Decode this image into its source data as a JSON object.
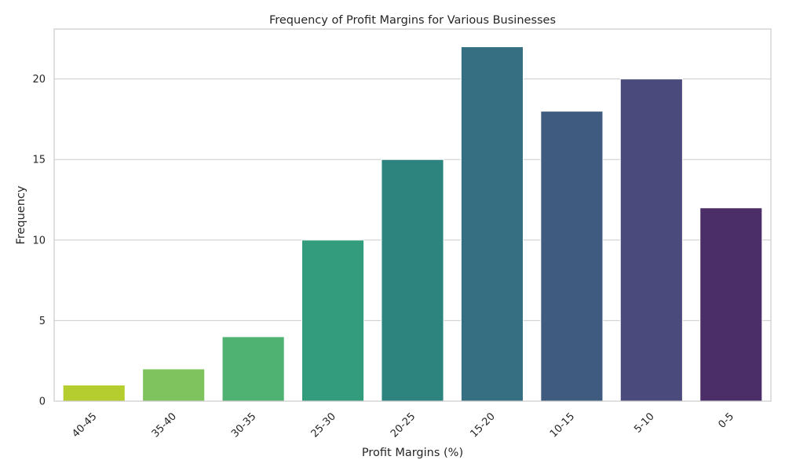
{
  "chart_data": {
    "type": "bar",
    "title": "Frequency of Profit Margins for Various Businesses",
    "xlabel": "Profit Margins (%)",
    "ylabel": "Frequency",
    "categories": [
      "40-45",
      "35-40",
      "30-35",
      "25-30",
      "20-25",
      "15-20",
      "10-15",
      "5-10",
      "0-5"
    ],
    "values": [
      1,
      2,
      4,
      10,
      15,
      22,
      18,
      20,
      12
    ],
    "colors": [
      "#b5cd2e",
      "#7fc35f",
      "#50b272",
      "#329c7d",
      "#2d847f",
      "#366f81",
      "#3f5c80",
      "#4b4a7d",
      "#4b2d68"
    ],
    "ylim": [
      0,
      23.1
    ],
    "yticks": [
      0,
      5,
      10,
      15,
      20
    ],
    "grid": true,
    "grid_axis": "y",
    "legend": "none"
  }
}
